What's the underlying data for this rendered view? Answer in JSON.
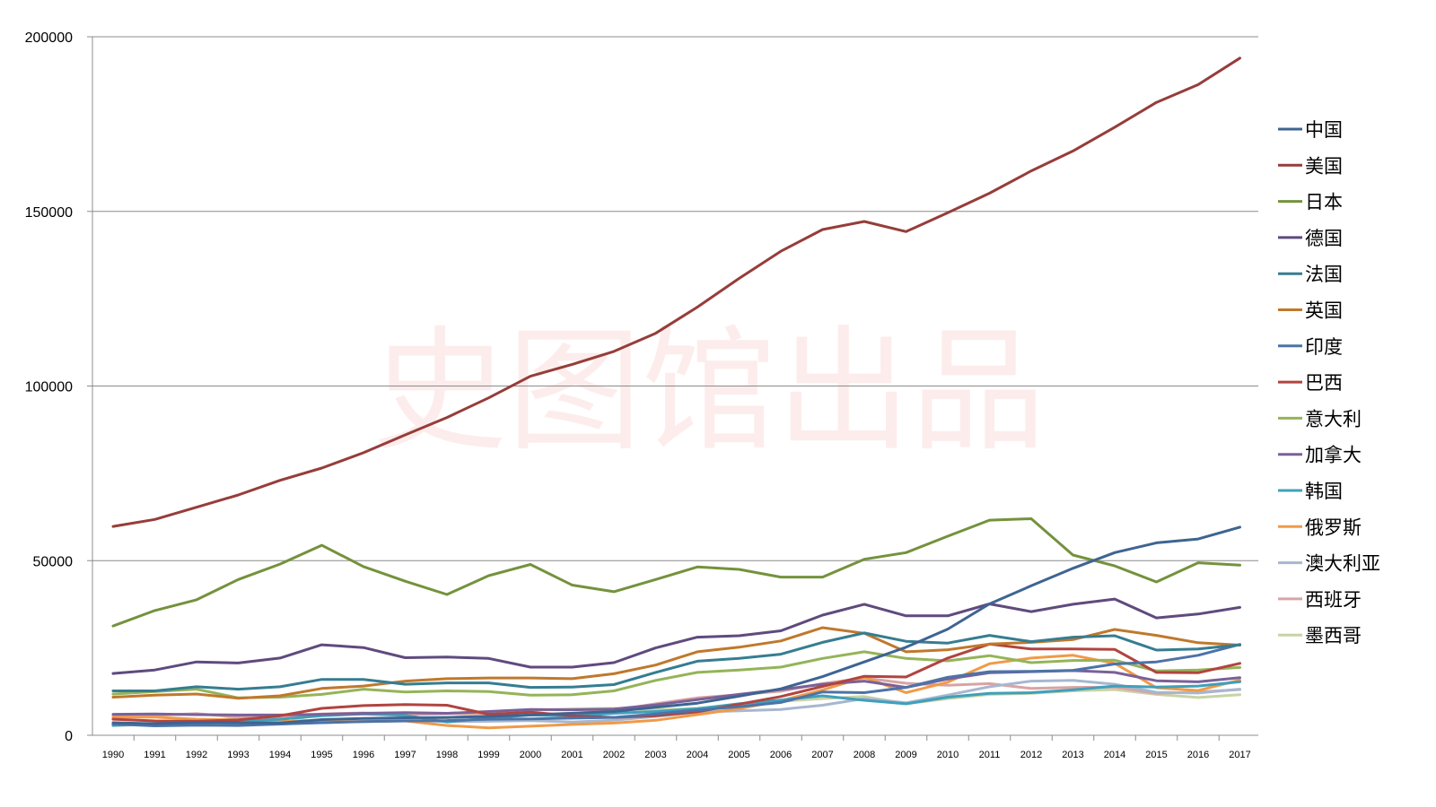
{
  "watermark": "史图馆出品",
  "chart_data": {
    "type": "line",
    "title": "",
    "xlabel": "",
    "ylabel": "",
    "ylim": [
      0,
      200000
    ],
    "yticks": [
      0,
      50000,
      100000,
      150000,
      200000
    ],
    "grid": "horizontal",
    "legend_position": "right",
    "x": [
      "1990",
      "1991",
      "1992",
      "1993",
      "1994",
      "1995",
      "1996",
      "1997",
      "1998",
      "1999",
      "2000",
      "2001",
      "2002",
      "2003",
      "2004",
      "2005",
      "2006",
      "2007",
      "2008",
      "2009",
      "2010",
      "2011",
      "2012",
      "2013",
      "2014",
      "2015",
      "2016",
      "2017"
    ],
    "series": [
      {
        "name": "中国",
        "color": "#3e6492",
        "values": [
          3600,
          3300,
          3700,
          3600,
          3500,
          4500,
          4800,
          5000,
          5100,
          5400,
          5800,
          6300,
          6800,
          8000,
          9200,
          11200,
          13300,
          16800,
          21000,
          25200,
          30400,
          37600,
          42800,
          47800,
          52300,
          55100,
          56200,
          59600
        ]
      },
      {
        "name": "美国",
        "color": "#963d3a",
        "values": [
          59800,
          61800,
          65300,
          68800,
          73000,
          76500,
          80900,
          86000,
          91000,
          96600,
          102800,
          106200,
          109900,
          115100,
          122600,
          130800,
          138600,
          144800,
          147100,
          144200,
          149600,
          155200,
          161600,
          167300,
          174100,
          181200,
          186300,
          193900
        ]
      },
      {
        "name": "日本",
        "color": "#74923c",
        "values": [
          31300,
          35700,
          38800,
          44600,
          49000,
          54400,
          48300,
          44100,
          40300,
          45700,
          48900,
          43000,
          41100,
          44600,
          48200,
          47500,
          45300,
          45300,
          50400,
          52300,
          57000,
          61600,
          62000,
          51600,
          48500,
          43900,
          49400,
          48700
        ]
      },
      {
        "name": "德国",
        "color": "#5f4a7e",
        "values": [
          17700,
          18700,
          21000,
          20700,
          22100,
          25900,
          25100,
          22200,
          22400,
          22000,
          19500,
          19500,
          20800,
          25000,
          28100,
          28500,
          29900,
          34400,
          37500,
          34200,
          34200,
          37600,
          35400,
          37500,
          39000,
          33600,
          34700,
          36600
        ]
      },
      {
        "name": "法国",
        "color": "#357d91",
        "values": [
          12700,
          12700,
          13900,
          13200,
          13900,
          16000,
          16000,
          14600,
          15000,
          15000,
          13700,
          13800,
          14500,
          18000,
          21200,
          22000,
          23200,
          26600,
          29300,
          26900,
          26400,
          28600,
          26800,
          28100,
          28500,
          24400,
          24700,
          25900
        ]
      },
      {
        "name": "英国",
        "color": "#c0782c",
        "values": [
          10900,
          11500,
          11800,
          10600,
          11300,
          13400,
          14100,
          15500,
          16200,
          16400,
          16400,
          16200,
          17600,
          20100,
          23900,
          25200,
          27000,
          30800,
          29200,
          23900,
          24500,
          26100,
          26600,
          27400,
          30300,
          28600,
          26500,
          25800
        ]
      },
      {
        "name": "印度",
        "color": "#4c73a8",
        "values": [
          3200,
          2700,
          2900,
          2800,
          3200,
          3600,
          3900,
          4100,
          4200,
          4600,
          4700,
          4900,
          5100,
          6100,
          7200,
          8200,
          9400,
          12400,
          12200,
          13700,
          16600,
          18200,
          18300,
          18600,
          20400,
          21000,
          22900,
          26000
        ]
      },
      {
        "name": "巴西",
        "color": "#b1443f",
        "values": [
          4600,
          4100,
          4000,
          4400,
          5600,
          7700,
          8500,
          8800,
          8600,
          6000,
          6600,
          5600,
          5100,
          5600,
          6700,
          8900,
          11100,
          14000,
          16900,
          16700,
          22100,
          26100,
          24700,
          24700,
          24600,
          18000,
          17900,
          20600
        ]
      },
      {
        "name": "意大利",
        "color": "#94b458",
        "values": [
          11800,
          12500,
          13200,
          10700,
          10900,
          11700,
          13200,
          12400,
          12700,
          12500,
          11500,
          11600,
          12700,
          15700,
          18000,
          18700,
          19500,
          22000,
          23900,
          22000,
          21300,
          22800,
          20800,
          21400,
          21500,
          18400,
          18700,
          19400
        ]
      },
      {
        "name": "加拿大",
        "color": "#7a6199",
        "values": [
          6000,
          6100,
          5900,
          5800,
          5800,
          6000,
          6300,
          6500,
          6300,
          6800,
          7400,
          7300,
          7500,
          8700,
          10200,
          11700,
          13100,
          14600,
          15500,
          13700,
          16100,
          17900,
          18200,
          18500,
          18000,
          15600,
          15300,
          16500
        ]
      },
      {
        "name": "韩国",
        "color": "#3fa0ba",
        "values": [
          2800,
          3300,
          3500,
          3900,
          4600,
          5600,
          6100,
          5700,
          3800,
          4900,
          5800,
          5500,
          6300,
          6800,
          7600,
          9000,
          10100,
          11300,
          10000,
          9000,
          10900,
          12000,
          12200,
          13000,
          14100,
          13800,
          14100,
          15300
        ]
      },
      {
        "name": "俄罗斯",
        "color": "#f09a48",
        "values": [
          5200,
          5200,
          4600,
          4400,
          4000,
          3900,
          3900,
          4100,
          2800,
          2100,
          2600,
          3100,
          3500,
          4300,
          5900,
          7600,
          9900,
          13000,
          16600,
          12200,
          15200,
          20500,
          22100,
          22900,
          20600,
          13600,
          12800,
          15800
        ]
      },
      {
        "name": "澳大利亚",
        "color": "#a7b7cf",
        "values": [
          3100,
          3200,
          3200,
          3000,
          3200,
          3700,
          4000,
          4300,
          3900,
          4000,
          4200,
          3800,
          4300,
          5400,
          6600,
          7000,
          7400,
          8600,
          10500,
          9300,
          11500,
          13900,
          15500,
          15700,
          14600,
          12300,
          12100,
          13200
        ]
      },
      {
        "name": "西班牙",
        "color": "#d9a3a3",
        "values": [
          5400,
          5700,
          6200,
          5200,
          5100,
          6100,
          6400,
          5900,
          6200,
          6300,
          6000,
          6300,
          7100,
          9000,
          10700,
          11600,
          12600,
          14800,
          16400,
          14900,
          14300,
          14800,
          13400,
          13700,
          13800,
          12000,
          12400,
          13100
        ]
      },
      {
        "name": "墨西哥",
        "color": "#c8d3a6",
        "values": [
          2800,
          3100,
          3700,
          5000,
          5300,
          3600,
          4000,
          4800,
          5000,
          5900,
          7100,
          7600,
          7700,
          7300,
          7700,
          8700,
          9700,
          10500,
          11100,
          9000,
          10500,
          11700,
          12000,
          12700,
          13100,
          11700,
          10800,
          11600
        ]
      }
    ]
  }
}
